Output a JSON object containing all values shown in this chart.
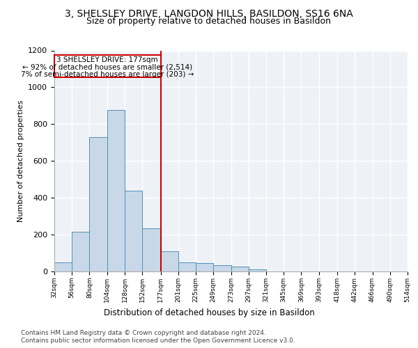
{
  "title1": "3, SHELSLEY DRIVE, LANGDON HILLS, BASILDON, SS16 6NA",
  "title2": "Size of property relative to detached houses in Basildon",
  "xlabel": "Distribution of detached houses by size in Basildon",
  "ylabel": "Number of detached properties",
  "footer1": "Contains HM Land Registry data © Crown copyright and database right 2024.",
  "footer2": "Contains public sector information licensed under the Open Government Licence v3.0.",
  "property_label": "3 SHELSLEY DRIVE: 177sqm",
  "annotation_line1": "← 92% of detached houses are smaller (2,514)",
  "annotation_line2": "7% of semi-detached houses are larger (203) →",
  "bar_edges": [
    32,
    56,
    80,
    104,
    128,
    152,
    177,
    201,
    225,
    249,
    273,
    297,
    321,
    345,
    369,
    393,
    418,
    442,
    466,
    490,
    514
  ],
  "bar_heights": [
    50,
    215,
    730,
    875,
    440,
    235,
    110,
    50,
    45,
    33,
    25,
    10,
    0,
    0,
    0,
    0,
    0,
    0,
    0,
    0
  ],
  "bar_color": "#c8d8e8",
  "bar_edge_color": "#5090b8",
  "vline_color": "#cc0000",
  "vline_x": 177,
  "annotation_box_color": "#cc0000",
  "ylim": [
    0,
    1200
  ],
  "yticks": [
    0,
    200,
    400,
    600,
    800,
    1000,
    1200
  ],
  "bg_color": "#eef2f7",
  "grid_color": "#ffffff",
  "title1_fontsize": 10,
  "title2_fontsize": 9
}
